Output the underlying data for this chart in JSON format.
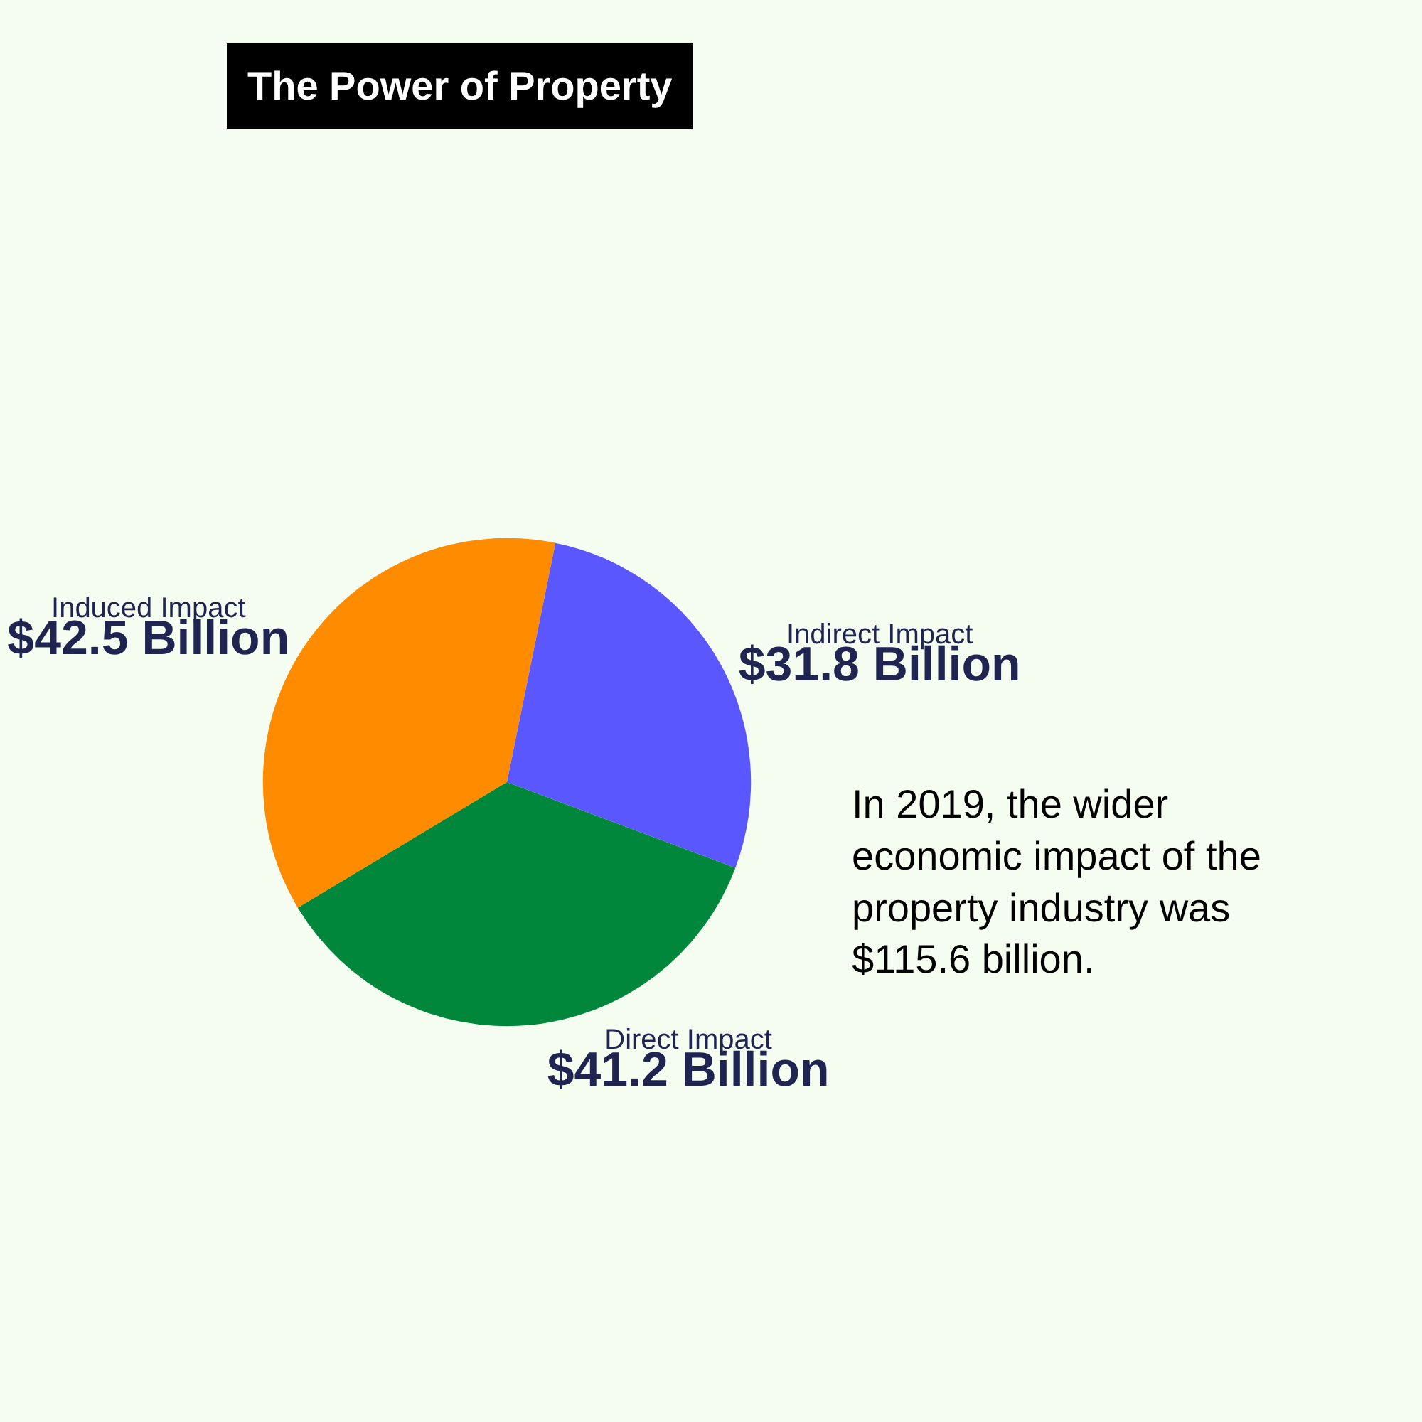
{
  "chart_data": {
    "type": "pie",
    "title": "The Power of Property",
    "categories": [
      "Induced Impact",
      "Indirect Impact",
      "Direct Impact"
    ],
    "values": [
      42.5,
      31.8,
      41.2
    ],
    "colors": [
      "#ff8c00",
      "#5b57ff",
      "#00873c"
    ],
    "value_labels": [
      "$42.5 Billion",
      "$31.8 Billion",
      "$41.2 Billion"
    ],
    "annotations": [
      "In 2019, the wider economic impact of the property industry was $115.6 billion."
    ],
    "legend": false
  }
}
